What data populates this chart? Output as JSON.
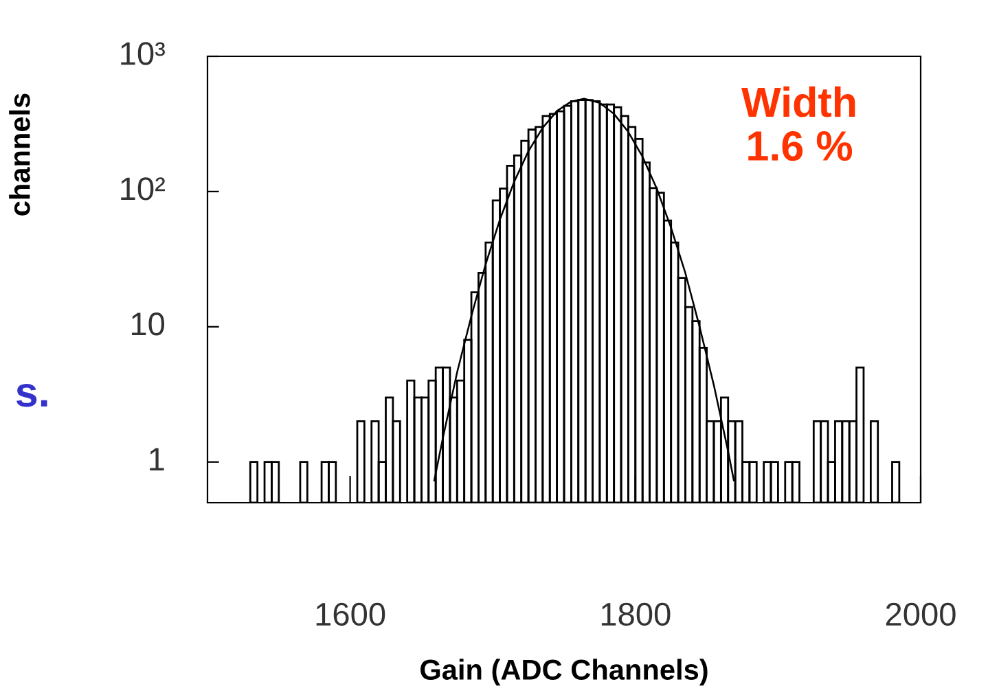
{
  "chart_data": {
    "type": "histogram",
    "xlabel": "Gain (ADC Channels)",
    "ylabel": "channels",
    "color": "#000000",
    "bins": [
      1500,
      1505,
      1510,
      1515,
      1520,
      1525,
      1530,
      1535,
      1540,
      1545,
      1550,
      1555,
      1560,
      1565,
      1570,
      1575,
      1580,
      1585,
      1590,
      1595,
      1600,
      1605,
      1610,
      1615,
      1620,
      1625,
      1630,
      1635,
      1640,
      1645,
      1650,
      1655,
      1660,
      1665,
      1670,
      1675,
      1680,
      1685,
      1690,
      1695,
      1700,
      1705,
      1710,
      1715,
      1720,
      1725,
      1730,
      1735,
      1740,
      1745,
      1750,
      1755,
      1760,
      1765,
      1770,
      1775,
      1780,
      1785,
      1790,
      1795,
      1800,
      1805,
      1810,
      1815,
      1820,
      1825,
      1830,
      1835,
      1840,
      1845,
      1850,
      1855,
      1860,
      1865,
      1870,
      1875,
      1880,
      1885,
      1890,
      1895,
      1900,
      1905,
      1910,
      1915,
      1920,
      1925,
      1930,
      1935,
      1940,
      1945,
      1950,
      1955,
      1960,
      1965,
      1970,
      1975,
      1980,
      1985,
      1990,
      1995,
      2000
    ],
    "values": [
      null,
      null,
      null,
      null,
      null,
      null,
      1,
      null,
      1,
      1,
      null,
      null,
      null,
      1,
      null,
      null,
      1,
      1,
      null,
      null,
      null,
      2,
      null,
      2,
      1,
      3,
      2,
      null,
      4,
      3,
      3,
      4,
      5,
      5,
      3,
      4,
      8,
      18,
      25,
      42,
      86,
      105,
      155,
      185,
      237,
      287,
      300,
      362,
      375,
      392,
      430,
      465,
      475,
      475,
      465,
      440,
      440,
      420,
      362,
      300,
      245,
      164,
      106,
      98,
      61,
      42,
      23,
      14,
      11,
      7,
      2,
      2,
      3,
      2,
      2,
      1,
      1,
      null,
      1,
      1,
      null,
      1,
      1,
      null,
      null,
      2,
      2,
      1,
      2,
      2,
      2,
      5,
      null,
      2,
      null,
      null,
      1,
      null,
      null,
      null
    ],
    "series": [
      {
        "type": "line",
        "color": "#000000",
        "x": [
          1659,
          1665,
          1675,
          1685,
          1695,
          1705,
          1715,
          1725,
          1735,
          1745,
          1755,
          1764,
          1775,
          1785,
          1795,
          1805,
          1815,
          1825,
          1835,
          1845,
          1855,
          1865,
          1869
        ],
        "values": [
          0.73,
          1.5,
          4.6,
          12,
          29,
          62,
          118,
          199,
          296,
          394,
          463,
          486,
          453,
          375,
          276,
          181,
          105,
          54,
          25,
          10,
          3.7,
          1.2,
          0.73
        ]
      }
    ],
    "log": "y",
    "xlim": [
      1500,
      2000
    ],
    "xticks": [
      1600,
      1800,
      2000
    ],
    "ylim": [
      0.5,
      1000
    ],
    "yticks": [
      {
        "value": 1,
        "label": "1"
      },
      {
        "value": 10,
        "label": "10"
      },
      {
        "value": 100,
        "label": "10²"
      },
      {
        "value": 1000,
        "label": "10³"
      }
    ],
    "grid": false,
    "legend": false,
    "annotations": [
      "Width\n1.6 %",
      "s."
    ]
  }
}
